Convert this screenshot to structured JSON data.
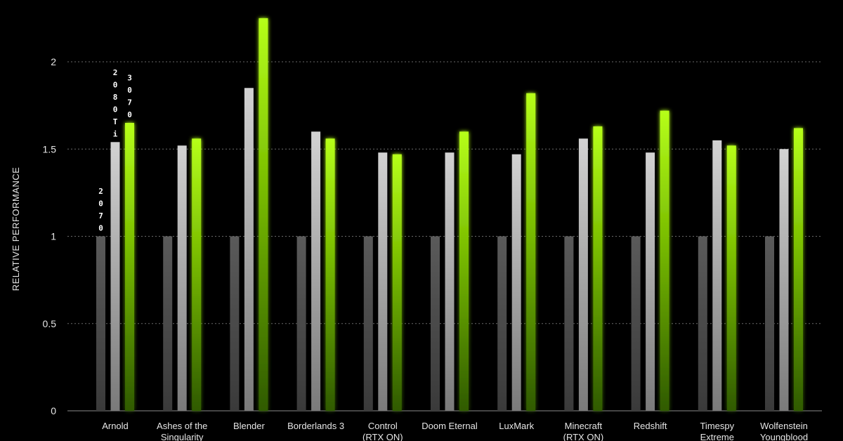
{
  "chart_data": {
    "type": "bar",
    "title": "",
    "xlabel": "",
    "ylabel": "RELATIVE  PERFORMANCE",
    "ylim": [
      0,
      2.3
    ],
    "yticks": [
      0,
      0.5,
      1,
      1.5,
      2
    ],
    "ytick_labels": [
      "0",
      "0.5",
      "1",
      "1.5",
      "2"
    ],
    "grid": true,
    "legend": "none (series labelled vertically above the first group's bars)",
    "categories": [
      [
        "Arnold"
      ],
      [
        "Ashes of the",
        "Singularity"
      ],
      [
        "Blender"
      ],
      [
        "Borderlands 3"
      ],
      [
        "Control",
        "(RTX ON)"
      ],
      [
        "Doom Eternal"
      ],
      [
        "LuxMark"
      ],
      [
        "Minecraft",
        "(RTX ON)"
      ],
      [
        "Redshift"
      ],
      [
        "Timespy",
        "Extreme"
      ],
      [
        "Wolfenstein",
        "Youngblood"
      ]
    ],
    "series": [
      {
        "name": "2070",
        "color": "#555555",
        "values": [
          1,
          1,
          1,
          1,
          1,
          1,
          1,
          1,
          1,
          1,
          1
        ]
      },
      {
        "name": "2080Ti",
        "color": "#c8c8c8",
        "values": [
          1.54,
          1.52,
          1.85,
          1.6,
          1.48,
          1.48,
          1.47,
          1.56,
          1.48,
          1.55,
          1.5
        ]
      },
      {
        "name": "3070",
        "color": "#76b900",
        "values": [
          1.65,
          1.56,
          2.25,
          1.56,
          1.47,
          1.6,
          1.82,
          1.63,
          1.72,
          1.52,
          1.62
        ]
      }
    ]
  }
}
